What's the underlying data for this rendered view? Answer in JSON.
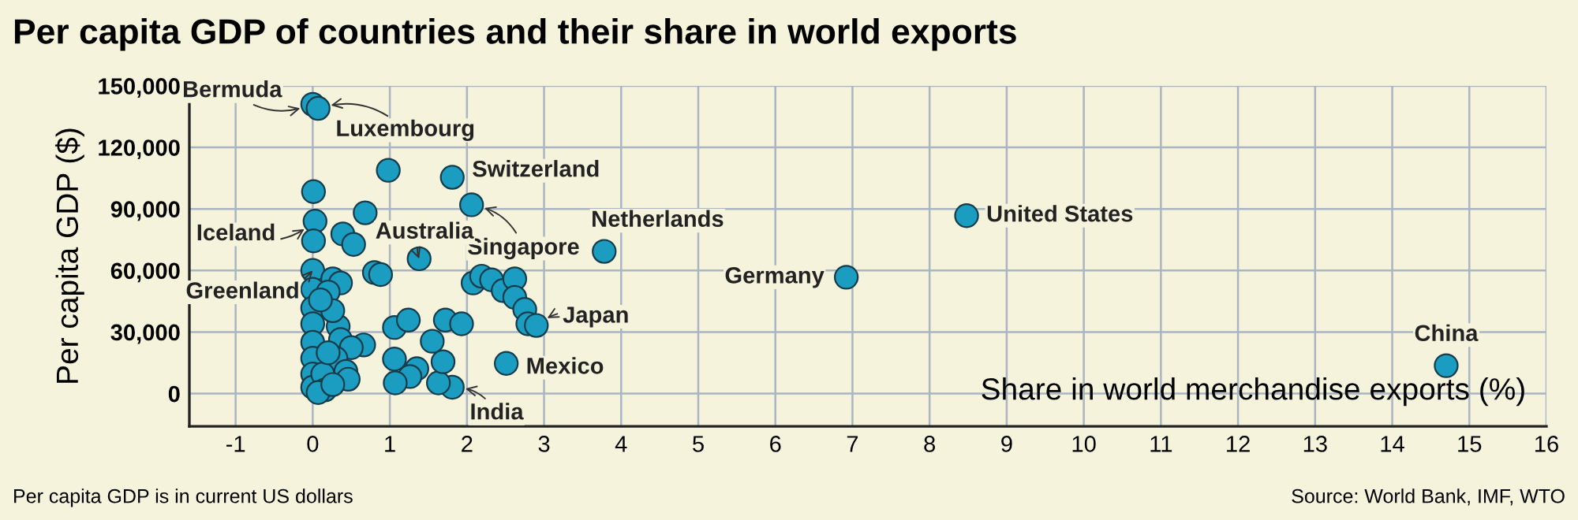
{
  "chart_data": {
    "type": "scatter",
    "title": "Per capita GDP of countries and their share in world exports",
    "xlabel": "Share in world merchandise exports (%)",
    "ylabel": "Per capita GDP ($)",
    "series": [
      {
        "color": "#1b9dc2",
        "x": [
          0.0,
          0.07,
          0.98,
          1.81,
          2.06,
          0.01,
          0.03,
          0.01,
          0.68,
          0.39,
          0.53,
          1.38,
          0.8,
          0.88,
          0.0,
          2.08,
          2.19,
          2.32,
          2.47,
          2.62,
          2.62,
          2.75,
          2.79,
          2.9,
          2.51,
          1.81,
          1.63,
          1.69,
          1.55,
          1.72,
          1.93,
          1.06,
          1.24,
          1.06,
          1.35,
          1.26,
          1.07,
          3.78,
          6.92,
          8.48,
          14.7,
          0.0,
          0.0,
          0.0,
          0.0,
          0.0,
          0.0,
          0.0,
          0.26,
          0.36,
          0.2,
          0.33,
          0.36,
          0.66,
          0.5,
          0.3,
          0.43,
          0.46,
          0.13,
          0.16,
          0.07,
          0.26,
          0.2,
          0.26,
          0.1
        ],
        "values": [
          141000,
          139000,
          108800,
          105400,
          92000,
          98400,
          84000,
          74400,
          88100,
          77800,
          72700,
          65700,
          59000,
          58000,
          60000,
          53900,
          57200,
          55400,
          50200,
          55900,
          46900,
          41000,
          34000,
          33200,
          14700,
          3100,
          5200,
          15500,
          25500,
          35800,
          34000,
          32200,
          35800,
          16800,
          12100,
          8300,
          5200,
          69300,
          56700,
          86700,
          13600,
          50800,
          41700,
          34000,
          25000,
          17200,
          9500,
          3100,
          55900,
          53900,
          49500,
          32700,
          26300,
          23700,
          22400,
          17200,
          10800,
          7000,
          9500,
          1800,
          500,
          4400,
          19900,
          40400,
          45600
        ]
      }
    ],
    "xlim": [
      -1.6,
      16
    ],
    "xticks": [
      -1,
      0,
      1,
      2,
      3,
      4,
      5,
      6,
      7,
      8,
      9,
      10,
      11,
      12,
      13,
      14,
      15,
      16
    ],
    "ylim": [
      -16000,
      150000
    ],
    "yticks": [
      {
        "value": 0,
        "label": "0"
      },
      {
        "value": 30000,
        "label": "30,000"
      },
      {
        "value": 60000,
        "label": "60,000"
      },
      {
        "value": 90000,
        "label": "90,000"
      },
      {
        "value": 120000,
        "label": "120,000"
      },
      {
        "value": 150000,
        "label": "150,000"
      }
    ],
    "grid": true,
    "marker": "circle",
    "annotations": [
      {
        "text": "Bermuda",
        "x": 0.0,
        "y": 141000
      },
      {
        "text": "Luxembourg",
        "x": 0.07,
        "y": 139000
      },
      {
        "text": "Switzerland",
        "x": 1.81,
        "y": 105400
      },
      {
        "text": "Singapore",
        "x": 2.06,
        "y": 92000
      },
      {
        "text": "Netherlands",
        "x": 3.78,
        "y": 69300
      },
      {
        "text": "Iceland",
        "x": 0.03,
        "y": 84000
      },
      {
        "text": "Australia",
        "x": 1.38,
        "y": 65700
      },
      {
        "text": "Greenland",
        "x": 0.0,
        "y": 60000
      },
      {
        "text": "Germany",
        "x": 6.92,
        "y": 56700
      },
      {
        "text": "United States",
        "x": 8.48,
        "y": 86700
      },
      {
        "text": "Japan",
        "x": 2.9,
        "y": 33200
      },
      {
        "text": "Mexico",
        "x": 2.51,
        "y": 14700
      },
      {
        "text": "India",
        "x": 1.81,
        "y": 3100
      },
      {
        "text": "China",
        "x": 14.7,
        "y": 13600
      },
      "Per capita GDP is in current US dollars",
      "Source: World Bank, IMF, WTO"
    ]
  }
}
